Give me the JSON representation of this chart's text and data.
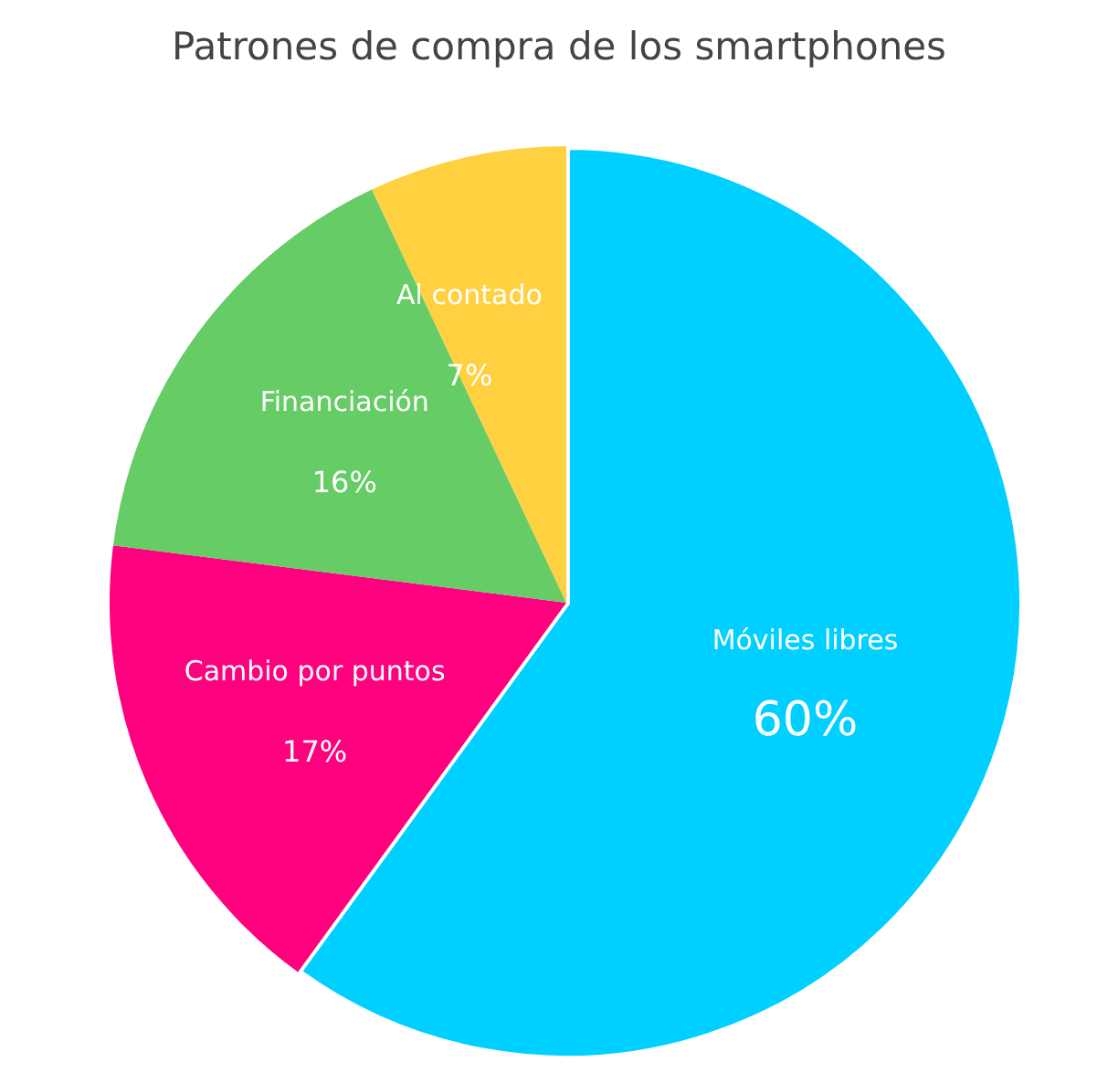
{
  "chart_data": {
    "type": "pie",
    "title": "Patrones de compra de los smartphones",
    "categories": [
      "Móviles libres",
      "Cambio por puntos",
      "Financiación",
      "Al contado"
    ],
    "values": [
      60,
      17,
      16,
      7
    ],
    "value_labels": [
      "60%",
      "17%",
      "16%",
      "7%"
    ],
    "colors": [
      "#00d0ff",
      "#ff007f",
      "#66cc66",
      "#ffd040"
    ]
  }
}
